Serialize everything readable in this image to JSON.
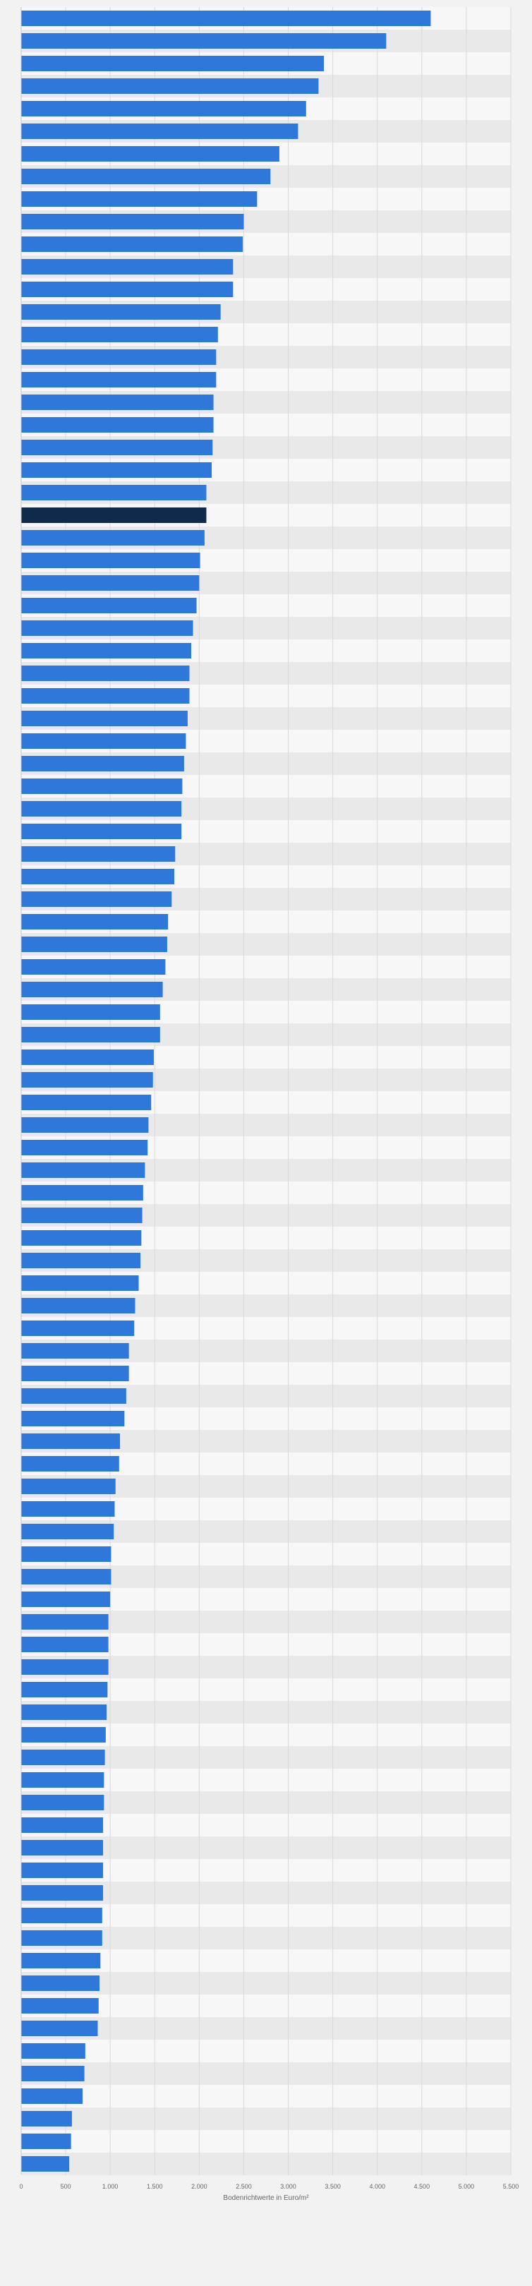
{
  "chart_data": {
    "type": "bar",
    "orientation": "horizontal",
    "title": "",
    "xlabel": "Bodenrichtwerte in Euro/m²",
    "ylabel": "",
    "xlim": [
      0,
      5500
    ],
    "xticks": [
      0,
      500,
      1000,
      1500,
      2000,
      2500,
      3000,
      3500,
      4000,
      4500,
      5000,
      5500
    ],
    "xtick_labels": [
      "0",
      "500",
      "1.000",
      "1.500",
      "2.000",
      "2.500",
      "3.000",
      "3.500",
      "4.000",
      "4.500",
      "5.000",
      "5.500"
    ],
    "grid": true,
    "legend": "none",
    "colors": {
      "bar": "#2f78d9",
      "highlight": "#0f2a4a",
      "stripe": "#e9e9e9",
      "grid": "#d9d9d9"
    },
    "highlight_index": 22,
    "values": [
      4600,
      4100,
      3400,
      3340,
      3200,
      3110,
      2900,
      2800,
      2650,
      2500,
      2490,
      2380,
      2380,
      2240,
      2210,
      2190,
      2190,
      2160,
      2160,
      2150,
      2140,
      2080,
      2080,
      2060,
      2010,
      2000,
      1970,
      1930,
      1910,
      1890,
      1890,
      1870,
      1850,
      1830,
      1810,
      1800,
      1800,
      1730,
      1720,
      1690,
      1650,
      1640,
      1620,
      1590,
      1560,
      1560,
      1490,
      1480,
      1460,
      1430,
      1420,
      1390,
      1370,
      1360,
      1350,
      1340,
      1320,
      1280,
      1270,
      1210,
      1210,
      1180,
      1160,
      1110,
      1100,
      1060,
      1050,
      1040,
      1010,
      1010,
      1000,
      980,
      980,
      980,
      970,
      960,
      950,
      940,
      930,
      930,
      920,
      920,
      920,
      920,
      910,
      910,
      890,
      880,
      870,
      860,
      720,
      710,
      690,
      570,
      560,
      540
    ]
  }
}
